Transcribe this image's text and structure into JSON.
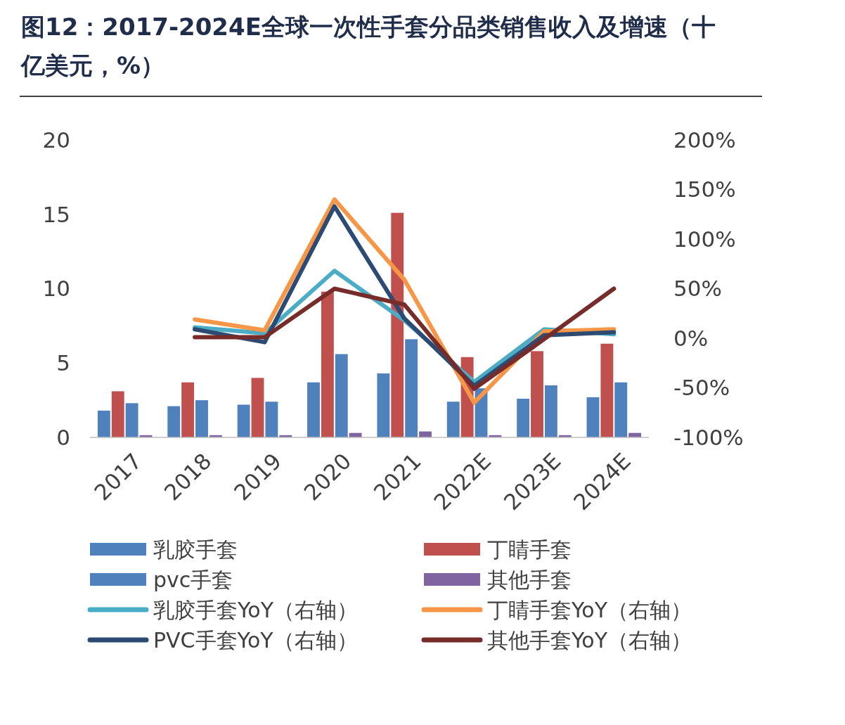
{
  "chart_data": {
    "type": "bar",
    "title": "图12：2017-2024E全球一次性手套分品类销售收入及增速（十亿美元，%）",
    "categories": [
      "2017",
      "2018",
      "2019",
      "2020",
      "2021",
      "2022E",
      "2023E",
      "2024E"
    ],
    "series": [
      {
        "name": "乳胶手套",
        "color": "#4f81bd",
        "values": [
          1.8,
          2.1,
          2.2,
          3.7,
          4.3,
          2.4,
          2.6,
          2.7
        ]
      },
      {
        "name": "丁睛手套",
        "color": "#c0504d",
        "values": [
          3.1,
          3.7,
          4.0,
          9.8,
          15.1,
          5.4,
          5.8,
          6.3
        ]
      },
      {
        "name": "pvc手套",
        "color": "#4f81bd",
        "values": [
          2.3,
          2.5,
          2.4,
          5.6,
          6.6,
          3.3,
          3.5,
          3.7
        ]
      },
      {
        "name": "其他手套",
        "color": "#8064a2",
        "values": [
          0.15,
          0.15,
          0.15,
          0.3,
          0.4,
          0.15,
          0.15,
          0.3
        ]
      },
      {
        "name": "乳胶手套YoY（右轴）",
        "type": "line",
        "axis": "y2",
        "color": "#4bacc6",
        "values": [
          null,
          11,
          5,
          68,
          18,
          -44,
          9,
          4
        ]
      },
      {
        "name": "丁睛手套YoY（右轴）",
        "type": "line",
        "axis": "y2",
        "color": "#f79646",
        "values": [
          null,
          19,
          8,
          140,
          59,
          -65,
          7,
          9
        ]
      },
      {
        "name": "PVC手套YoY（右轴）",
        "type": "line",
        "axis": "y2",
        "color": "#2c4a72",
        "values": [
          null,
          9,
          -4,
          133,
          20,
          -48,
          3,
          6
        ]
      },
      {
        "name": "其他手套YoY（右轴）",
        "type": "line",
        "axis": "y2",
        "color": "#772c2a",
        "values": [
          null,
          1,
          1,
          50,
          34,
          -51,
          -1,
          50
        ]
      }
    ],
    "ylim": [
      0,
      20
    ],
    "yticks": [
      0,
      5,
      10,
      15,
      20
    ],
    "y2lim": [
      -100,
      200
    ],
    "y2ticks": [
      {
        "value": -100,
        "label": "-100%"
      },
      {
        "value": -50,
        "label": "-50%"
      },
      {
        "value": 0,
        "label": "0%"
      },
      {
        "value": 50,
        "label": "50%"
      },
      {
        "value": 100,
        "label": "100%"
      },
      {
        "value": 150,
        "label": "150%"
      },
      {
        "value": 200,
        "label": "200%"
      }
    ],
    "grid": false,
    "legend": "bottom",
    "line_style": "solid",
    "marker": "none"
  }
}
